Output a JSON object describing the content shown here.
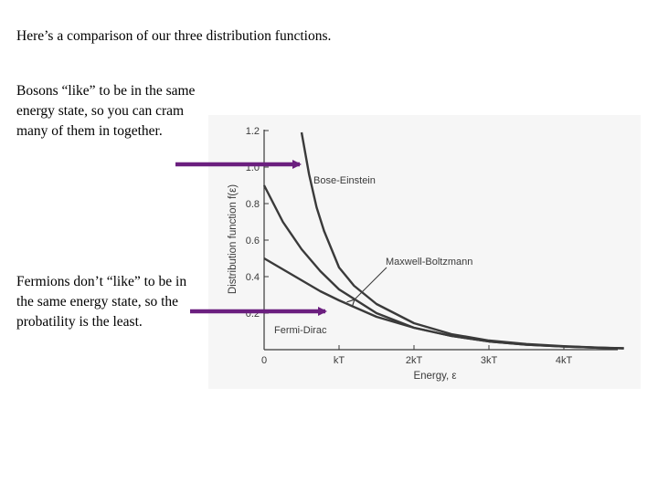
{
  "slide": {
    "heading": "Here’s a comparison of our three distribution functions.",
    "bosons_note": "Bosons “like” to be in the same energy state, so you can cram many of them in together.",
    "fermions_note": "Fermions don’t “like” to be in the same energy state, so the probatility is the least."
  },
  "colors": {
    "arrow": "#6b1f7f",
    "curve": "#3a3a3a",
    "panel": "#f6f6f6"
  },
  "chart_data": {
    "type": "line",
    "xlabel": "Energy, ε",
    "ylabel": "Distribution function f(ε)",
    "xlim": [
      0,
      4.8
    ],
    "ylim": [
      0,
      1.2
    ],
    "x_ticks": [
      {
        "value": 0,
        "label": "0"
      },
      {
        "value": 1,
        "label": "kT"
      },
      {
        "value": 2,
        "label": "2kT"
      },
      {
        "value": 3,
        "label": "3kT"
      },
      {
        "value": 4,
        "label": "4kT"
      }
    ],
    "y_ticks": [
      {
        "value": 0.2,
        "label": "0.2"
      },
      {
        "value": 0.4,
        "label": "0.4"
      },
      {
        "value": 0.6,
        "label": "0.6"
      },
      {
        "value": 0.8,
        "label": "0.8"
      },
      {
        "value": 1.0,
        "label": "1.0"
      },
      {
        "value": 1.2,
        "label": "1.2"
      }
    ],
    "series": [
      {
        "name": "Bose-Einstein",
        "x": [
          0.5,
          0.6,
          0.7,
          0.8,
          0.9,
          1.0,
          1.2,
          1.5,
          2.0,
          2.5,
          3.0,
          3.5,
          4.0,
          4.5,
          4.8
        ],
        "y": [
          1.19,
          0.96,
          0.78,
          0.65,
          0.55,
          0.45,
          0.35,
          0.25,
          0.145,
          0.085,
          0.05,
          0.031,
          0.019,
          0.011,
          0.008
        ]
      },
      {
        "name": "Maxwell-Boltzmann",
        "x": [
          0,
          0.25,
          0.5,
          0.75,
          1.0,
          1.5,
          2.0,
          2.5,
          3.0,
          3.5,
          4.0,
          4.5,
          4.8
        ],
        "y": [
          0.9,
          0.7,
          0.55,
          0.43,
          0.33,
          0.2,
          0.12,
          0.075,
          0.045,
          0.027,
          0.017,
          0.01,
          0.007
        ]
      },
      {
        "name": "Fermi-Dirac",
        "x": [
          0,
          0.25,
          0.5,
          0.75,
          1.0,
          1.5,
          2.0,
          2.5,
          3.0,
          3.5,
          4.0,
          4.5,
          4.8
        ],
        "y": [
          0.5,
          0.44,
          0.38,
          0.32,
          0.27,
          0.18,
          0.12,
          0.075,
          0.045,
          0.027,
          0.017,
          0.01,
          0.007
        ]
      }
    ],
    "labels": {
      "bose_einstein": "Bose-Einstein",
      "maxwell_boltzmann": "Maxwell-Boltzmann",
      "fermi_dirac": "Fermi-Dirac"
    }
  }
}
